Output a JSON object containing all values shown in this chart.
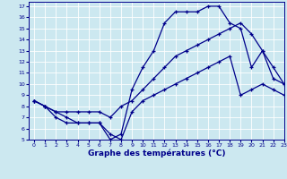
{
  "title": "Graphe des températures (°C)",
  "bg_color": "#cce8f0",
  "line_color": "#00008b",
  "xlim": [
    -0.5,
    23
  ],
  "ylim": [
    5,
    17.4
  ],
  "xticks": [
    0,
    1,
    2,
    3,
    4,
    5,
    6,
    7,
    8,
    9,
    10,
    11,
    12,
    13,
    14,
    15,
    16,
    17,
    18,
    19,
    20,
    21,
    22,
    23
  ],
  "yticks": [
    5,
    6,
    7,
    8,
    9,
    10,
    11,
    12,
    13,
    14,
    15,
    16,
    17
  ],
  "curve1_x": [
    0,
    1,
    2,
    3,
    4,
    5,
    6,
    7,
    8,
    9,
    10,
    11,
    12,
    13,
    14,
    15,
    16,
    17,
    18,
    19,
    20,
    21,
    22,
    23
  ],
  "curve1_y": [
    8.5,
    8.0,
    7.5,
    7.0,
    6.5,
    6.5,
    6.5,
    5.0,
    5.5,
    9.5,
    11.5,
    13.0,
    15.5,
    16.5,
    16.5,
    16.5,
    17.0,
    17.0,
    15.5,
    15.0,
    11.5,
    13.0,
    10.5,
    10.0
  ],
  "curve2_x": [
    0,
    1,
    2,
    3,
    4,
    5,
    6,
    7,
    8,
    9,
    10,
    11,
    12,
    13,
    14,
    15,
    16,
    17,
    18,
    19,
    20,
    21,
    22,
    23
  ],
  "curve2_y": [
    8.5,
    8.0,
    7.5,
    7.5,
    7.5,
    7.5,
    7.5,
    7.0,
    8.0,
    8.5,
    9.5,
    10.5,
    11.5,
    12.5,
    13.0,
    13.5,
    14.0,
    14.5,
    15.0,
    15.5,
    14.5,
    13.0,
    11.5,
    10.0
  ],
  "curve3_x": [
    0,
    1,
    2,
    3,
    4,
    5,
    6,
    7,
    8,
    9,
    10,
    11,
    12,
    13,
    14,
    15,
    16,
    17,
    18,
    19,
    20,
    21,
    22,
    23
  ],
  "curve3_y": [
    8.5,
    8.0,
    7.0,
    6.5,
    6.5,
    6.5,
    6.5,
    5.5,
    5.0,
    7.5,
    8.5,
    9.0,
    9.5,
    10.0,
    10.5,
    11.0,
    11.5,
    12.0,
    12.5,
    9.0,
    9.5,
    10.0,
    9.5,
    9.0
  ],
  "grid_color": "#ffffff",
  "label_fontsize": 4.5,
  "xlabel_fontsize": 6.5
}
